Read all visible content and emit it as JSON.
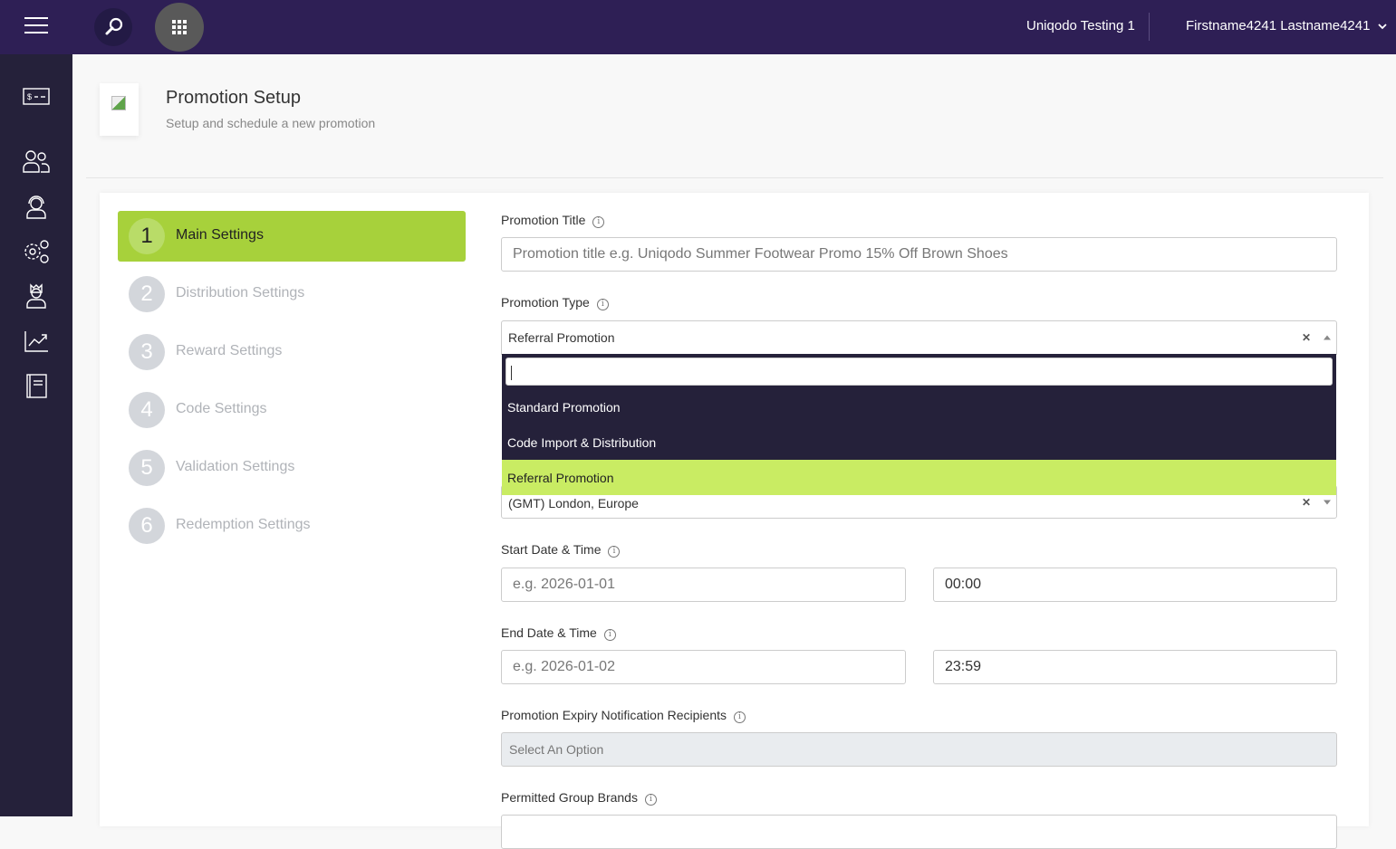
{
  "header": {
    "org": "Uniqodo Testing 1",
    "user": "Firstname4241 Lastname4241",
    "colors": {
      "topbar": "#2e1f55",
      "sidebar": "#25213a",
      "accent": "#a7d13b"
    }
  },
  "sidebar": {
    "icons": [
      "billing-icon",
      "users-icon",
      "support-agent-icon",
      "settings-icon",
      "admin-user-icon",
      "analytics-icon",
      "docs-icon"
    ]
  },
  "page": {
    "title": "Promotion Setup",
    "subtitle": "Setup and schedule a new promotion"
  },
  "steps": [
    {
      "num": "1",
      "label": "Main Settings",
      "active": true
    },
    {
      "num": "2",
      "label": "Distribution Settings"
    },
    {
      "num": "3",
      "label": "Reward Settings"
    },
    {
      "num": "4",
      "label": "Code Settings"
    },
    {
      "num": "5",
      "label": "Validation Settings"
    },
    {
      "num": "6",
      "label": "Redemption Settings"
    }
  ],
  "form": {
    "title_label": "Promotion Title",
    "title_placeholder": "Promotion title e.g. Uniqodo Summer Footwear Promo 15% Off Brown Shoes",
    "type_label": "Promotion Type",
    "type_value": "Referral Promotion",
    "type_options": [
      "Standard Promotion",
      "Code Import & Distribution",
      "Referral Promotion"
    ],
    "timezone_value": "(GMT) London, Europe",
    "start_label": "Start Date & Time",
    "start_date_placeholder": "e.g. 2026-01-01",
    "start_time": "00:00",
    "end_label": "End Date & Time",
    "end_date_placeholder": "e.g. 2026-01-02",
    "end_time": "23:59",
    "expiry_label": "Promotion Expiry Notification Recipients",
    "expiry_placeholder": "Select An Option",
    "brands_label": "Permitted Group Brands"
  }
}
